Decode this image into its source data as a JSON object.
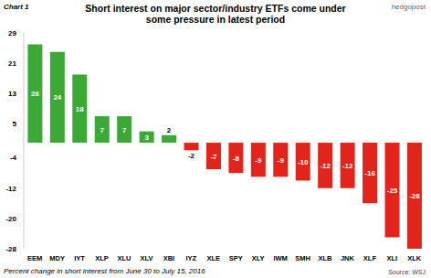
{
  "chart_data": {
    "type": "bar",
    "title": "Short interest on major sector/industry ETFs come under some pressure in latest period",
    "x_label": "Percent change in short interest from June 30 to July 15, 2016",
    "annotations": [
      "Chart 1",
      "hedgopost",
      "Source: WSJ"
    ],
    "categories": [
      "EEM",
      "MDY",
      "IYT",
      "XLP",
      "XLU",
      "XLV",
      "XBI",
      "IYZ",
      "XLE",
      "SPY",
      "XLY",
      "IWM",
      "SMH",
      "XLB",
      "JNK",
      "XLF",
      "XLI",
      "XLK"
    ],
    "values": [
      26,
      24,
      18,
      7,
      7,
      3,
      2,
      -2,
      -7,
      -8,
      -9,
      -9,
      -10,
      -12,
      -12,
      -16,
      -25,
      -28
    ],
    "colors": [
      "#3aa935",
      "#3aa935",
      "#3aa935",
      "#3aa935",
      "#3aa935",
      "#3aa935",
      "#3aa935",
      "#e3241b",
      "#e3241b",
      "#e3241b",
      "#e3241b",
      "#e3241b",
      "#e3241b",
      "#e3241b",
      "#e3241b",
      "#e3241b",
      "#e3241b",
      "#e3241b"
    ],
    "ylim": [
      -28,
      29
    ],
    "yticks": [
      -28,
      -20,
      -12,
      -4,
      5,
      13,
      21,
      29
    ],
    "grid": false,
    "data_labels": true
  }
}
